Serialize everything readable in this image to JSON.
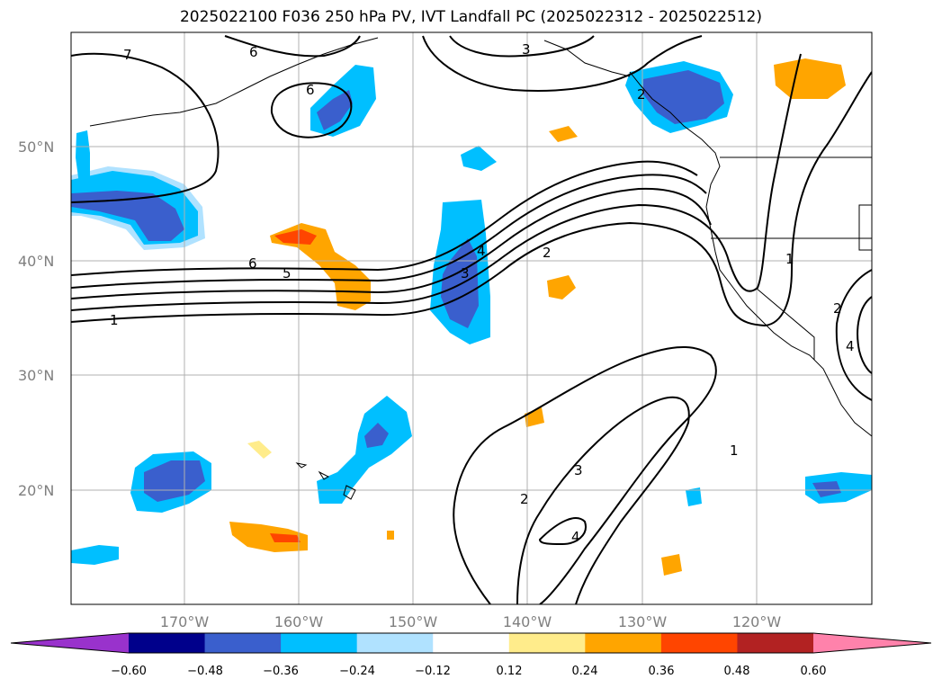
{
  "title": "2025022100 F036 250 hPa PV, IVT Landfall PC (2025022312 - 2025022512)",
  "latitude_labels": [
    "50°N",
    "40°N",
    "30°N",
    "20°N"
  ],
  "longitude_labels": [
    "170°W",
    "160°W",
    "150°W",
    "140°W",
    "130°W",
    "120°W"
  ],
  "colorbar": {
    "ticks": [
      "−0.60",
      "−0.48",
      "−0.36",
      "−0.24",
      "−0.12",
      "0.12",
      "0.24",
      "0.36",
      "0.48",
      "0.60"
    ],
    "colors": [
      "#9932cc",
      "#00008b",
      "#3a5fcd",
      "#00bfff",
      "#b0e2ff",
      "#ffffff",
      "#ffec8b",
      "#ffa500",
      "#ff4500",
      "#b22222",
      "#ff82ab"
    ],
    "extend": "both"
  },
  "contour_labels": [
    "7",
    "6",
    "6",
    "3",
    "6",
    "5",
    "1",
    "4",
    "3",
    "2",
    "1",
    "2",
    "3",
    "4",
    "2",
    "1",
    "2",
    "4"
  ]
}
